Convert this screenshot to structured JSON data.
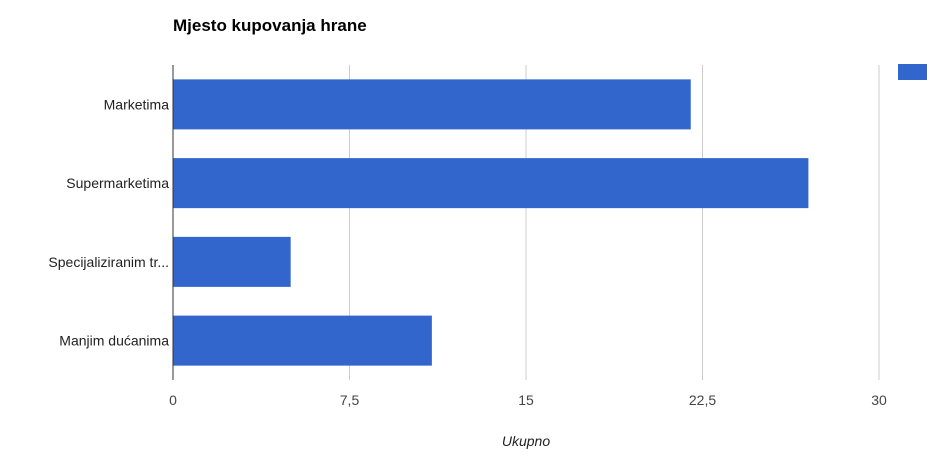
{
  "chart_data": {
    "type": "bar",
    "orientation": "horizontal",
    "title": "Mjesto kupovanja hrane",
    "categories": [
      "Marketima",
      "Supermarketima",
      "Specijaliziranim tr...",
      "Manjim dućanima"
    ],
    "values": [
      22,
      27,
      5,
      11
    ],
    "xlabel": "Ukupno",
    "ylabel": "",
    "xlim": [
      0,
      30
    ],
    "ticks": [
      "0",
      "7,5",
      "15",
      "22,5",
      "30"
    ],
    "tick_values": [
      0,
      7.5,
      15,
      22.5,
      30
    ],
    "grid": true,
    "legend": "right",
    "bar_color": "#3366cc"
  }
}
